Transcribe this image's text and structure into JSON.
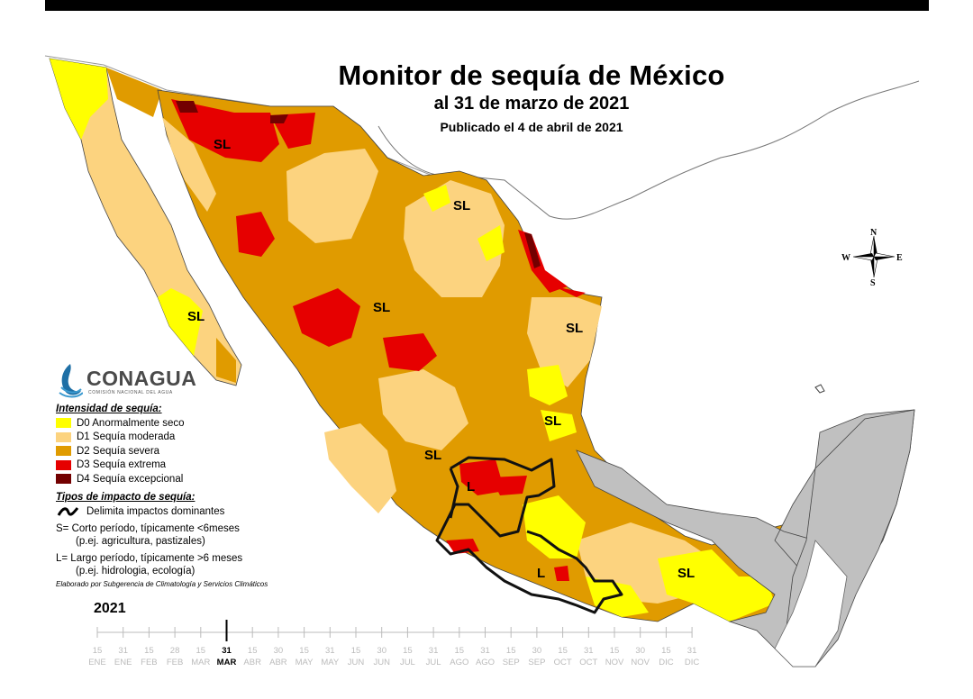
{
  "title": {
    "main": "Monitor de sequía de México",
    "date_line": "al 31 de marzo de 2021",
    "published": "Publicado el 4 de abril de 2021"
  },
  "compass": {
    "n": "N",
    "s": "S",
    "e": "E",
    "w": "W"
  },
  "region_labels": [
    "SL",
    "SL",
    "SL",
    "SL",
    "SL",
    "SL",
    "SL",
    "L",
    "L"
  ],
  "logo": {
    "name": "CONAGUA",
    "subtitle": "COMISIÓN NACIONAL DEL AGUA"
  },
  "legend": {
    "intensity_heading": "Intensidad de sequía:",
    "intensity": [
      {
        "label": "D0 Anormalmente seco",
        "color": "#ffff00"
      },
      {
        "label": "D1 Sequía moderada",
        "color": "#fcd37f"
      },
      {
        "label": "D2 Sequía severa",
        "color": "#e09b00"
      },
      {
        "label": "D3 Sequía extrema",
        "color": "#e60000"
      },
      {
        "label": "D4 Sequía excepcional",
        "color": "#730000"
      }
    ],
    "impact_heading": "Tipos de impacto de sequía:",
    "impact_line": "Delimita impactos dominantes",
    "short_term": "S= Corto período, típicamente <6meses",
    "short_term_eg": "(p.ej. agricultura, pastizales)",
    "long_term": "L= Largo período, típicamente >6 meses",
    "long_term_eg": "(p.ej. hidrologia, ecología)",
    "credit": "Elaborado por  Subgerencia de Climatología y Servicios Climáticos"
  },
  "timeline": {
    "year": "2021",
    "ticks": [
      {
        "d": "15",
        "m": "ENE"
      },
      {
        "d": "31",
        "m": "ENE"
      },
      {
        "d": "15",
        "m": "FEB"
      },
      {
        "d": "28",
        "m": "FEB"
      },
      {
        "d": "15",
        "m": "MAR"
      },
      {
        "d": "31",
        "m": "MAR"
      },
      {
        "d": "15",
        "m": "ABR"
      },
      {
        "d": "30",
        "m": "ABR"
      },
      {
        "d": "15",
        "m": "MAY"
      },
      {
        "d": "31",
        "m": "MAY"
      },
      {
        "d": "15",
        "m": "JUN"
      },
      {
        "d": "30",
        "m": "JUN"
      },
      {
        "d": "15",
        "m": "JUL"
      },
      {
        "d": "31",
        "m": "JUL"
      },
      {
        "d": "15",
        "m": "AGO"
      },
      {
        "d": "31",
        "m": "AGO"
      },
      {
        "d": "15",
        "m": "SEP"
      },
      {
        "d": "30",
        "m": "SEP"
      },
      {
        "d": "15",
        "m": "OCT"
      },
      {
        "d": "31",
        "m": "OCT"
      },
      {
        "d": "15",
        "m": "NOV"
      },
      {
        "d": "30",
        "m": "NOV"
      },
      {
        "d": "15",
        "m": "DIC"
      },
      {
        "d": "31",
        "m": "DIC"
      }
    ],
    "current_index": 5
  },
  "colors": {
    "no_drought": "#fefefe",
    "neighbor": "#c0c0c0",
    "d0": "#ffff00",
    "d1": "#fcd37f",
    "d2": "#e09b00",
    "d3": "#e60000",
    "d4": "#730000"
  }
}
